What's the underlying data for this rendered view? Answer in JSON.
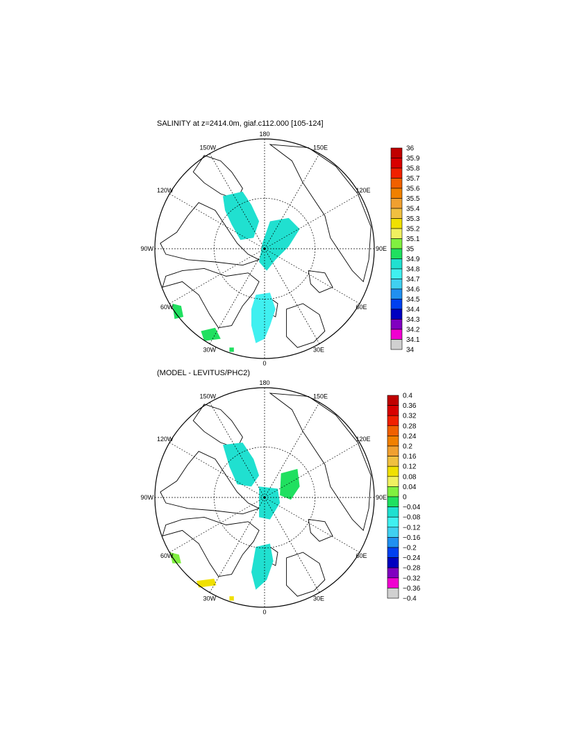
{
  "panels": [
    {
      "title": "SALINITY at z=2414.0m, giaf.c112.000 [105-124]",
      "longitude_labels": [
        "180",
        "150E",
        "120E",
        "90E",
        "60E",
        "30E",
        "0",
        "30W",
        "60W",
        "90W",
        "120W",
        "150W"
      ],
      "colorbar": {
        "labels": [
          "36",
          "35.9",
          "35.8",
          "35.7",
          "35.6",
          "35.5",
          "35.4",
          "35.3",
          "35.2",
          "35.1",
          "35",
          "34.9",
          "34.8",
          "34.7",
          "34.6",
          "34.5",
          "34.4",
          "34.3",
          "34.2",
          "34.1",
          "34"
        ],
        "colors": [
          "#c00000",
          "#d80000",
          "#f02000",
          "#f06000",
          "#f08000",
          "#f0a030",
          "#f0c040",
          "#f0e000",
          "#f0f060",
          "#80f040",
          "#20e060",
          "#20e0d0",
          "#40f0f0",
          "#40d0f0",
          "#2090f0",
          "#0040f0",
          "#0000c0",
          "#8000c0",
          "#f000d0",
          "#d0d0d0",
          "#707070"
        ]
      }
    },
    {
      "title": "(MODEL - LEVITUS/PHC2)",
      "longitude_labels": [
        "180",
        "150E",
        "120E",
        "90E",
        "60E",
        "30E",
        "0",
        "30W",
        "60W",
        "90W",
        "120W",
        "150W"
      ],
      "colorbar": {
        "labels": [
          "0.4",
          "0.36",
          "0.32",
          "0.28",
          "0.24",
          "0.2",
          "0.16",
          "0.12",
          "0.08",
          "0.04",
          "0",
          "−0.04",
          "−0.08",
          "−0.12",
          "−0.16",
          "−0.2",
          "−0.24",
          "−0.28",
          "−0.32",
          "−0.36",
          "−0.4"
        ],
        "colors": [
          "#c00000",
          "#d80000",
          "#f02000",
          "#f06000",
          "#f08000",
          "#f0a030",
          "#f0c040",
          "#f0e000",
          "#f0f060",
          "#80f040",
          "#20e060",
          "#20e0d0",
          "#40f0f0",
          "#40d0f0",
          "#2090f0",
          "#0040f0",
          "#0000c0",
          "#8000c0",
          "#f000d0",
          "#d0d0d0",
          "#707070"
        ]
      }
    }
  ]
}
